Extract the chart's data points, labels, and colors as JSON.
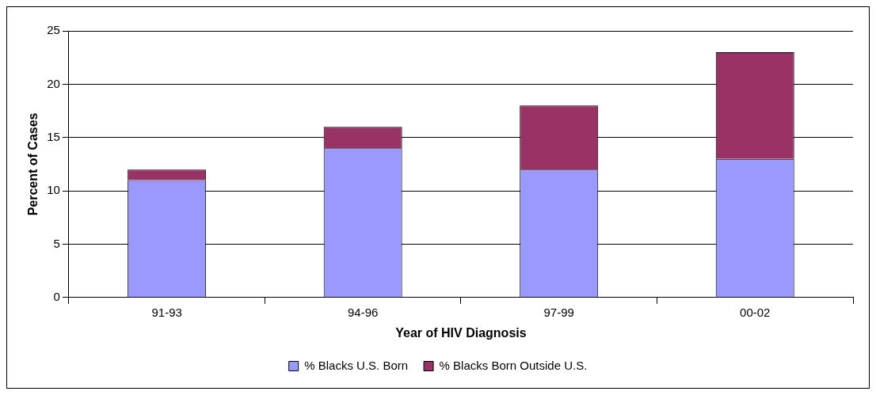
{
  "chart_data": {
    "type": "bar",
    "stacked": true,
    "xlabel": "Year of HIV Diagnosis",
    "ylabel": "Percent of Cases",
    "categories": [
      "91-93",
      "94-96",
      "97-99",
      "00-02"
    ],
    "series": [
      {
        "name": "% Blacks U.S. Born",
        "color": "#9999ff",
        "values": [
          11,
          14,
          12,
          13
        ]
      },
      {
        "name": "% Blacks Born Outside U.S.",
        "color": "#993366",
        "values": [
          1,
          2,
          6,
          10
        ]
      }
    ],
    "ylim": [
      0,
      25
    ],
    "yticks": [
      0,
      5,
      10,
      15,
      20,
      25
    ],
    "grid": "y",
    "legend": "bottom"
  }
}
